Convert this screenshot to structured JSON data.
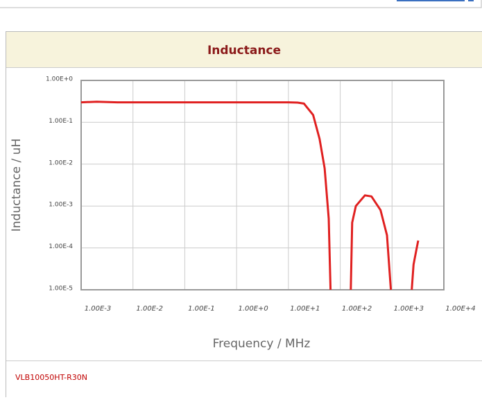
{
  "chart_data": {
    "type": "line",
    "title": "Inductance",
    "x_label": "Frequency / MHz",
    "y_label": "Inductance / uH",
    "x": [
      0.001,
      0.002,
      0.005,
      0.01,
      0.1,
      1,
      5,
      10,
      15,
      20,
      30,
      40,
      50,
      60,
      65,
      100,
      160,
      170,
      200,
      300,
      400,
      600,
      800,
      950,
      1500,
      2400,
      2600,
      3000,
      3200
    ],
    "values": [
      0.3,
      0.31,
      0.3,
      0.3,
      0.3,
      0.3,
      0.3,
      0.3,
      0.295,
      0.28,
      0.15,
      0.04,
      0.008,
      0.0005,
      1e-05,
      null,
      1e-05,
      0.0004,
      0.001,
      0.0018,
      0.0017,
      0.0008,
      0.0002,
      1e-05,
      null,
      1e-05,
      4e-05,
      0.0001,
      0.00015
    ],
    "color": "#e02020",
    "xscale": "log",
    "yscale": "log",
    "grid": true,
    "xlim": [
      0.001,
      10000
    ],
    "xticks": [
      {
        "value": 0.001,
        "label": "1.00E-3"
      },
      {
        "value": 0.01,
        "label": "1.00E-2"
      },
      {
        "value": 0.1,
        "label": "1.00E-1"
      },
      {
        "value": 1,
        "label": "1.00E+0"
      },
      {
        "value": 10,
        "label": "1.00E+1"
      },
      {
        "value": 100,
        "label": "1.00E+2"
      },
      {
        "value": 1000,
        "label": "1.00E+3"
      },
      {
        "value": 10000,
        "label": "1.00E+4"
      }
    ],
    "ylim": [
      1e-05,
      1
    ],
    "yticks": [
      {
        "value": 1,
        "label": "1.00E+0"
      },
      {
        "value": 0.1,
        "label": "1.00E-1"
      },
      {
        "value": 0.01,
        "label": "1.00E-2"
      },
      {
        "value": 0.001,
        "label": "1.00E-3"
      },
      {
        "value": 0.0001,
        "label": "1.00E-4"
      },
      {
        "value": 1e-05,
        "label": "1.00E-5"
      }
    ]
  },
  "footer": {
    "part_number": "VLB10050HT-R30N"
  }
}
